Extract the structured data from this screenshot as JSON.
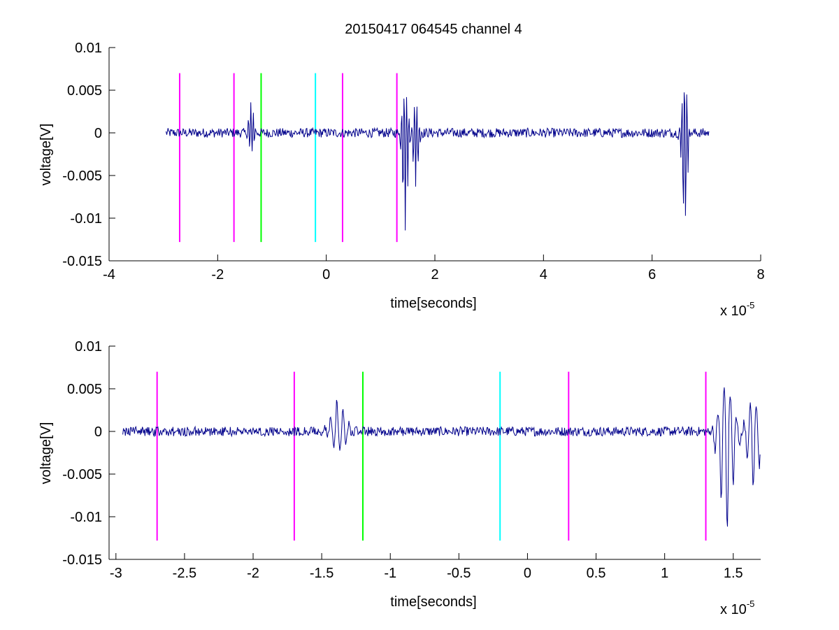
{
  "title": "20150417 064545 channel 4",
  "colors": {
    "signal": "#00008b",
    "magenta": "#ff00ff",
    "green": "#00ff00",
    "cyan": "#00ffff"
  },
  "chart_data": [
    {
      "type": "line",
      "xlabel": "time[seconds]",
      "ylabel": "voltage[V]",
      "x_multiplier_label": "x 10",
      "x_multiplier_exponent": "-5",
      "xlim": [
        -4,
        8
      ],
      "ylim": [
        -0.015,
        0.01
      ],
      "xticks": [
        -4,
        -2,
        0,
        2,
        4,
        6,
        8
      ],
      "xtick_labels": [
        "-4",
        "-2",
        "0",
        "2",
        "4",
        "6",
        "8"
      ],
      "yticks": [
        0.01,
        0.005,
        0,
        -0.005,
        -0.01,
        -0.015
      ],
      "ytick_labels": [
        "0.01",
        "0.005",
        "0",
        "-0.005",
        "-0.01",
        "-0.015"
      ],
      "markers": [
        {
          "x": -2.7,
          "color": "magenta",
          "y_top": 0.007,
          "y_bottom": -0.0128
        },
        {
          "x": -1.7,
          "color": "magenta",
          "y_top": 0.007,
          "y_bottom": -0.0128
        },
        {
          "x": -1.2,
          "color": "green",
          "y_top": 0.007,
          "y_bottom": -0.0128
        },
        {
          "x": -0.2,
          "color": "cyan",
          "y_top": 0.007,
          "y_bottom": -0.0128
        },
        {
          "x": 0.3,
          "color": "magenta",
          "y_top": 0.007,
          "y_bottom": -0.0128
        },
        {
          "x": 1.3,
          "color": "magenta",
          "y_top": 0.007,
          "y_bottom": -0.0128
        }
      ],
      "signal": {
        "x_range": [
          -2.95,
          7.05
        ],
        "events": [
          {
            "x": -1.38,
            "min": -0.0025,
            "max": 0.0035
          },
          {
            "x": 1.45,
            "min": -0.0116,
            "max": 0.0054
          },
          {
            "x": 1.65,
            "min": -0.0065,
            "max": 0.0035
          },
          {
            "x": 6.6,
            "min": -0.0116,
            "max": 0.0063
          }
        ]
      }
    },
    {
      "type": "line",
      "xlabel": "time[seconds]",
      "ylabel": "voltage[V]",
      "x_multiplier_label": "x 10",
      "x_multiplier_exponent": "-5",
      "xlim": [
        -3.05,
        1.7
      ],
      "ylim": [
        -0.015,
        0.01
      ],
      "xticks": [
        -3,
        -2.5,
        -2,
        -1.5,
        -1,
        -0.5,
        0,
        0.5,
        1,
        1.5
      ],
      "xtick_labels": [
        "-3",
        "-2.5",
        "-2",
        "-1.5",
        "-1",
        "-0.5",
        "0",
        "0.5",
        "1",
        "1.5"
      ],
      "yticks": [
        0.01,
        0.005,
        0,
        -0.005,
        -0.01,
        -0.015
      ],
      "ytick_labels": [
        "0.01",
        "0.005",
        "0",
        "-0.005",
        "-0.01",
        "-0.015"
      ],
      "markers": [
        {
          "x": -2.7,
          "color": "magenta",
          "y_top": 0.007,
          "y_bottom": -0.0128
        },
        {
          "x": -1.7,
          "color": "magenta",
          "y_top": 0.007,
          "y_bottom": -0.0128
        },
        {
          "x": -1.2,
          "color": "green",
          "y_top": 0.007,
          "y_bottom": -0.0128
        },
        {
          "x": -0.2,
          "color": "cyan",
          "y_top": 0.007,
          "y_bottom": -0.0128
        },
        {
          "x": 0.3,
          "color": "magenta",
          "y_top": 0.007,
          "y_bottom": -0.0128
        },
        {
          "x": 1.3,
          "color": "magenta",
          "y_top": 0.007,
          "y_bottom": -0.0128
        }
      ],
      "signal": {
        "x_range": [
          -2.95,
          1.7
        ],
        "events": [
          {
            "x": -1.38,
            "min": -0.0025,
            "max": 0.0035
          },
          {
            "x": 1.45,
            "min": -0.0116,
            "max": 0.0054
          },
          {
            "x": 1.65,
            "min": -0.0065,
            "max": 0.0035
          }
        ]
      }
    }
  ]
}
